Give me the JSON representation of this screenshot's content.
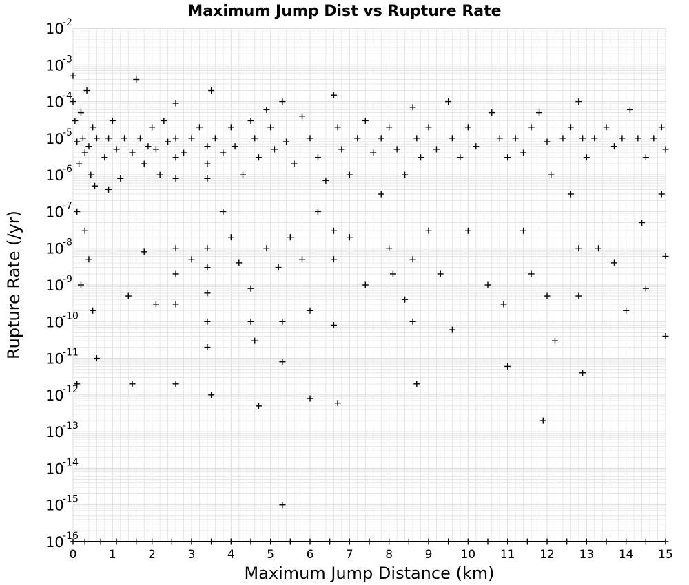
{
  "chart_data": {
    "type": "scatter",
    "title": "Maximum Jump Dist vs Rupture Rate",
    "xlabel": "Maximum Jump Distance (km)",
    "ylabel": "Rupture Rate (/yr)",
    "xlim": [
      0,
      15
    ],
    "ylim": [
      1e-16,
      0.01
    ],
    "y_scale": "log",
    "x_ticks": [
      0,
      1,
      2,
      3,
      4,
      5,
      6,
      7,
      8,
      9,
      10,
      11,
      12,
      13,
      14,
      15
    ],
    "x_tick_labels": [
      "0",
      "1",
      "2",
      "3",
      "4",
      "5",
      "6",
      "7",
      "8",
      "9",
      "10",
      "11",
      "12",
      "13",
      "14",
      "15"
    ],
    "y_tick_exponents": [
      -16,
      -15,
      -14,
      -13,
      -12,
      -11,
      -10,
      -9,
      -8,
      -7,
      -6,
      -5,
      -4,
      -3,
      -2
    ],
    "y_tick_base": "10",
    "y_tick_exponent_labels": [
      "-16",
      "-15",
      "-14",
      "-13",
      "-12",
      "-11",
      "-10",
      "-9",
      "-8",
      "-7",
      "-6",
      "-5",
      "-4",
      "-3",
      "-2"
    ],
    "grid": true,
    "marker": "+",
    "marker_color": "#000000",
    "grid_color": "#e6e6e6",
    "series": [
      {
        "points": [
          [
            0.0,
            0.0005
          ],
          [
            0.0,
            0.0001
          ],
          [
            0.05,
            3e-05
          ],
          [
            0.1,
            8e-06
          ],
          [
            0.15,
            2e-06
          ],
          [
            0.2,
            5e-05
          ],
          [
            0.25,
            1e-05
          ],
          [
            0.3,
            4e-06
          ],
          [
            0.35,
            0.0002
          ],
          [
            0.4,
            6e-06
          ],
          [
            0.45,
            1e-06
          ],
          [
            0.5,
            2e-05
          ],
          [
            0.55,
            5e-07
          ],
          [
            0.6,
            1e-05
          ],
          [
            0.8,
            3e-06
          ],
          [
            0.9,
            1e-05
          ],
          [
            1.0,
            3e-05
          ],
          [
            1.1,
            5e-06
          ],
          [
            1.2,
            8e-07
          ],
          [
            1.3,
            1e-05
          ],
          [
            1.5,
            4e-06
          ],
          [
            1.6,
            0.0004
          ],
          [
            1.7,
            1e-05
          ],
          [
            1.8,
            2e-06
          ],
          [
            1.9,
            6e-06
          ],
          [
            2.0,
            2e-05
          ],
          [
            2.1,
            5e-06
          ],
          [
            2.2,
            1e-06
          ],
          [
            2.3,
            3e-05
          ],
          [
            2.4,
            8e-06
          ],
          [
            2.6,
            9e-05
          ],
          [
            2.6,
            1e-05
          ],
          [
            2.6,
            3e-06
          ],
          [
            2.6,
            8e-07
          ],
          [
            2.8,
            4e-06
          ],
          [
            3.0,
            1e-05
          ],
          [
            3.2,
            2e-05
          ],
          [
            3.4,
            6e-06
          ],
          [
            3.4,
            2e-06
          ],
          [
            3.4,
            8e-07
          ],
          [
            3.5,
            0.0002
          ],
          [
            3.6,
            1e-05
          ],
          [
            3.8,
            4e-06
          ],
          [
            4.0,
            2e-05
          ],
          [
            4.1,
            6e-06
          ],
          [
            4.3,
            1e-06
          ],
          [
            4.5,
            3e-05
          ],
          [
            4.6,
            1e-05
          ],
          [
            4.7,
            3e-06
          ],
          [
            4.9,
            6e-05
          ],
          [
            5.0,
            2e-05
          ],
          [
            5.1,
            5e-06
          ],
          [
            5.3,
            0.0001
          ],
          [
            5.4,
            8e-06
          ],
          [
            5.6,
            2e-06
          ],
          [
            5.8,
            4e-05
          ],
          [
            6.0,
            1e-05
          ],
          [
            6.2,
            3e-06
          ],
          [
            6.4,
            7e-07
          ],
          [
            6.6,
            0.00015
          ],
          [
            6.7,
            2e-05
          ],
          [
            6.8,
            5e-06
          ],
          [
            7.0,
            1e-06
          ],
          [
            7.2,
            1e-05
          ],
          [
            7.4,
            3e-05
          ],
          [
            7.6,
            4e-06
          ],
          [
            7.8,
            1e-05
          ],
          [
            8.0,
            2e-05
          ],
          [
            8.2,
            5e-06
          ],
          [
            8.4,
            1e-06
          ],
          [
            8.6,
            7e-05
          ],
          [
            8.7,
            1e-05
          ],
          [
            8.8,
            3e-06
          ],
          [
            9.0,
            2e-05
          ],
          [
            9.2,
            5e-06
          ],
          [
            9.5,
            0.0001
          ],
          [
            9.6,
            1e-05
          ],
          [
            9.8,
            3e-06
          ],
          [
            10.0,
            2e-05
          ],
          [
            10.2,
            6e-06
          ],
          [
            10.6,
            5e-05
          ],
          [
            10.8,
            1e-05
          ],
          [
            11.0,
            3e-06
          ],
          [
            11.2,
            1e-05
          ],
          [
            11.4,
            4e-06
          ],
          [
            11.6,
            2e-05
          ],
          [
            11.8,
            5e-05
          ],
          [
            12.0,
            8e-06
          ],
          [
            12.1,
            1e-06
          ],
          [
            12.4,
            1e-05
          ],
          [
            12.6,
            2e-05
          ],
          [
            12.8,
            0.0001
          ],
          [
            12.9,
            1e-05
          ],
          [
            13.0,
            3e-06
          ],
          [
            13.2,
            1e-05
          ],
          [
            13.5,
            2e-05
          ],
          [
            13.7,
            6e-06
          ],
          [
            13.9,
            1e-05
          ],
          [
            14.1,
            6e-05
          ],
          [
            14.3,
            1e-05
          ],
          [
            14.5,
            3e-06
          ],
          [
            14.7,
            1e-05
          ],
          [
            14.9,
            2e-05
          ],
          [
            15.0,
            5e-06
          ],
          [
            0.1,
            1e-07
          ],
          [
            0.3,
            3e-08
          ],
          [
            0.4,
            5e-09
          ],
          [
            0.2,
            1e-09
          ],
          [
            0.5,
            2e-10
          ],
          [
            0.6,
            1e-11
          ],
          [
            0.1,
            2e-12
          ],
          [
            0.9,
            4e-07
          ],
          [
            1.4,
            5e-10
          ],
          [
            1.5,
            2e-12
          ],
          [
            1.8,
            8e-09
          ],
          [
            2.1,
            3e-10
          ],
          [
            2.6,
            1e-08
          ],
          [
            2.6,
            2e-09
          ],
          [
            2.6,
            3e-10
          ],
          [
            2.6,
            2e-12
          ],
          [
            3.0,
            5e-09
          ],
          [
            3.4,
            1e-08
          ],
          [
            3.4,
            3e-09
          ],
          [
            3.4,
            6e-10
          ],
          [
            3.4,
            1e-10
          ],
          [
            3.4,
            2e-11
          ],
          [
            3.5,
            1e-12
          ],
          [
            3.8,
            1e-07
          ],
          [
            4.0,
            2e-08
          ],
          [
            4.2,
            4e-09
          ],
          [
            4.5,
            8e-10
          ],
          [
            4.5,
            1e-10
          ],
          [
            4.6,
            3e-11
          ],
          [
            4.7,
            5e-13
          ],
          [
            4.9,
            1e-08
          ],
          [
            5.2,
            3e-09
          ],
          [
            5.3,
            1e-10
          ],
          [
            5.3,
            8e-12
          ],
          [
            5.3,
            1e-15
          ],
          [
            5.5,
            2e-08
          ],
          [
            5.8,
            5e-09
          ],
          [
            6.0,
            2e-10
          ],
          [
            6.0,
            8e-13
          ],
          [
            6.2,
            1e-07
          ],
          [
            6.6,
            3e-08
          ],
          [
            6.6,
            5e-09
          ],
          [
            6.6,
            8e-11
          ],
          [
            6.7,
            6e-13
          ],
          [
            7.0,
            2e-08
          ],
          [
            7.4,
            1e-09
          ],
          [
            7.8,
            3e-07
          ],
          [
            8.0,
            1e-08
          ],
          [
            8.1,
            2e-09
          ],
          [
            8.4,
            4e-10
          ],
          [
            8.6,
            5e-09
          ],
          [
            8.6,
            1e-10
          ],
          [
            8.7,
            2e-12
          ],
          [
            9.0,
            3e-08
          ],
          [
            9.3,
            2e-09
          ],
          [
            9.6,
            6e-11
          ],
          [
            10.0,
            3e-08
          ],
          [
            10.5,
            1e-09
          ],
          [
            10.9,
            3e-10
          ],
          [
            11.0,
            6e-12
          ],
          [
            11.4,
            3e-08
          ],
          [
            11.6,
            2e-09
          ],
          [
            11.9,
            2e-13
          ],
          [
            12.0,
            5e-10
          ],
          [
            12.2,
            3e-11
          ],
          [
            12.6,
            3e-07
          ],
          [
            12.8,
            1e-08
          ],
          [
            12.8,
            5e-10
          ],
          [
            12.9,
            4e-12
          ],
          [
            13.3,
            1e-08
          ],
          [
            13.7,
            4e-09
          ],
          [
            14.0,
            2e-10
          ],
          [
            14.4,
            5e-08
          ],
          [
            14.5,
            8e-10
          ],
          [
            14.9,
            3e-07
          ],
          [
            15.0,
            6e-09
          ],
          [
            15.0,
            4e-11
          ],
          [
            0.0,
            1e-16
          ],
          [
            0.3,
            1e-16
          ],
          [
            0.7,
            1e-16
          ],
          [
            1.1,
            1e-16
          ],
          [
            1.6,
            1e-16
          ],
          [
            2.0,
            1e-16
          ],
          [
            2.5,
            1e-16
          ],
          [
            3.0,
            1e-16
          ],
          [
            3.5,
            1e-16
          ],
          [
            4.0,
            1e-16
          ],
          [
            4.5,
            1e-16
          ],
          [
            5.0,
            1e-16
          ],
          [
            5.5,
            1e-16
          ],
          [
            6.0,
            1e-16
          ],
          [
            6.5,
            1e-16
          ],
          [
            7.0,
            1e-16
          ],
          [
            7.5,
            1e-16
          ],
          [
            8.0,
            1e-16
          ],
          [
            8.5,
            1e-16
          ],
          [
            9.0,
            1e-16
          ],
          [
            9.5,
            1e-16
          ],
          [
            10.0,
            1e-16
          ],
          [
            10.5,
            1e-16
          ],
          [
            11.0,
            1e-16
          ],
          [
            11.5,
            1e-16
          ],
          [
            12.0,
            1e-16
          ],
          [
            12.5,
            1e-16
          ],
          [
            13.0,
            1e-16
          ],
          [
            13.5,
            1e-16
          ],
          [
            14.0,
            1e-16
          ],
          [
            14.5,
            1e-16
          ],
          [
            15.0,
            1e-16
          ]
        ]
      }
    ]
  }
}
